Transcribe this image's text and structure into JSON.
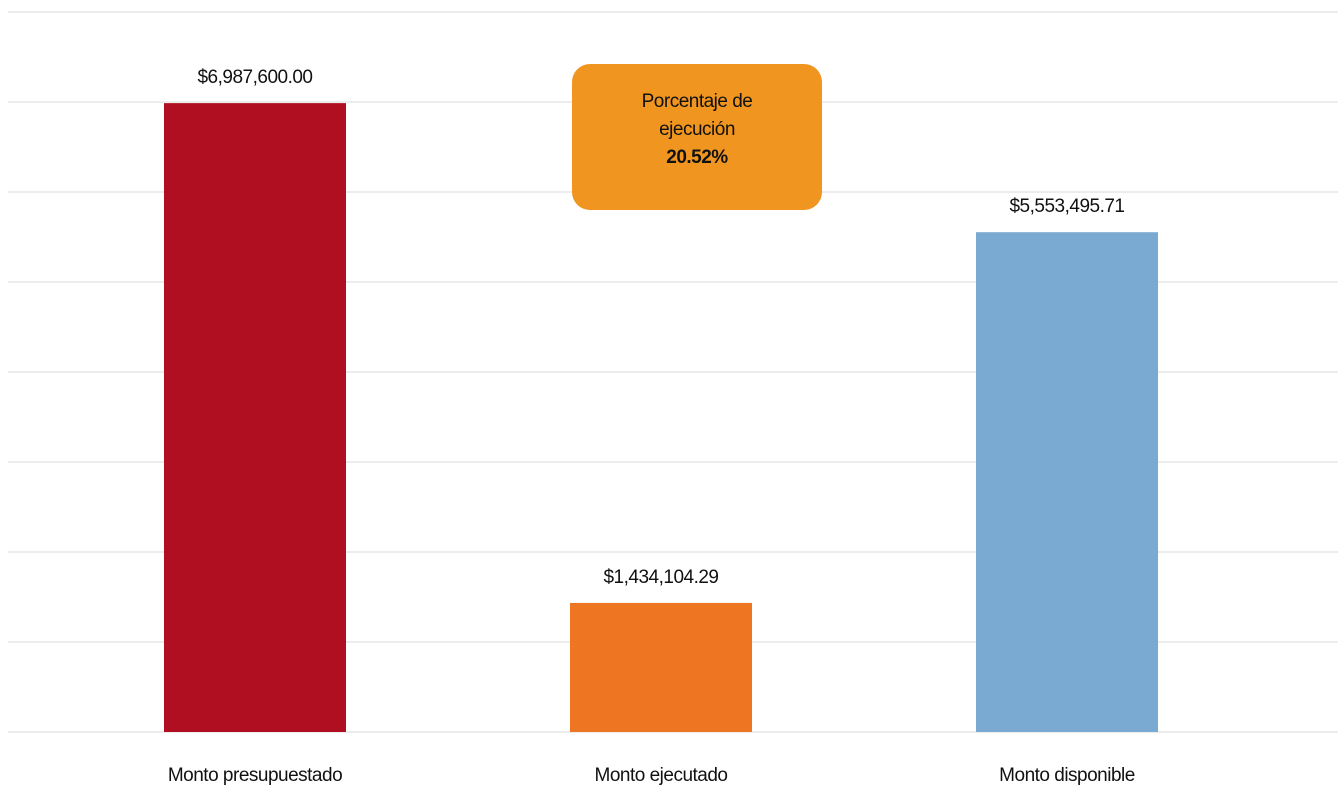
{
  "chart_data": {
    "type": "bar",
    "categories": [
      "Monto presupuestado",
      "Monto ejecutado",
      "Monto disponible"
    ],
    "values": [
      6987600.0,
      1434104.29,
      5553495.71
    ],
    "value_labels": [
      "$6,987,600.00",
      "$1,434,104.29",
      "$5,553,495.71"
    ],
    "colors": [
      "#b00f22",
      "#ee7623",
      "#7aaad2"
    ],
    "ylim": [
      0,
      8000000
    ],
    "yticks": [
      0,
      1000000,
      2000000,
      3000000,
      4000000,
      5000000,
      6000000,
      7000000,
      8000000
    ],
    "grid": true,
    "annotation": {
      "text": "Porcentaje de ejecución",
      "value_label": "20.52%",
      "color": "#f0951f"
    }
  }
}
